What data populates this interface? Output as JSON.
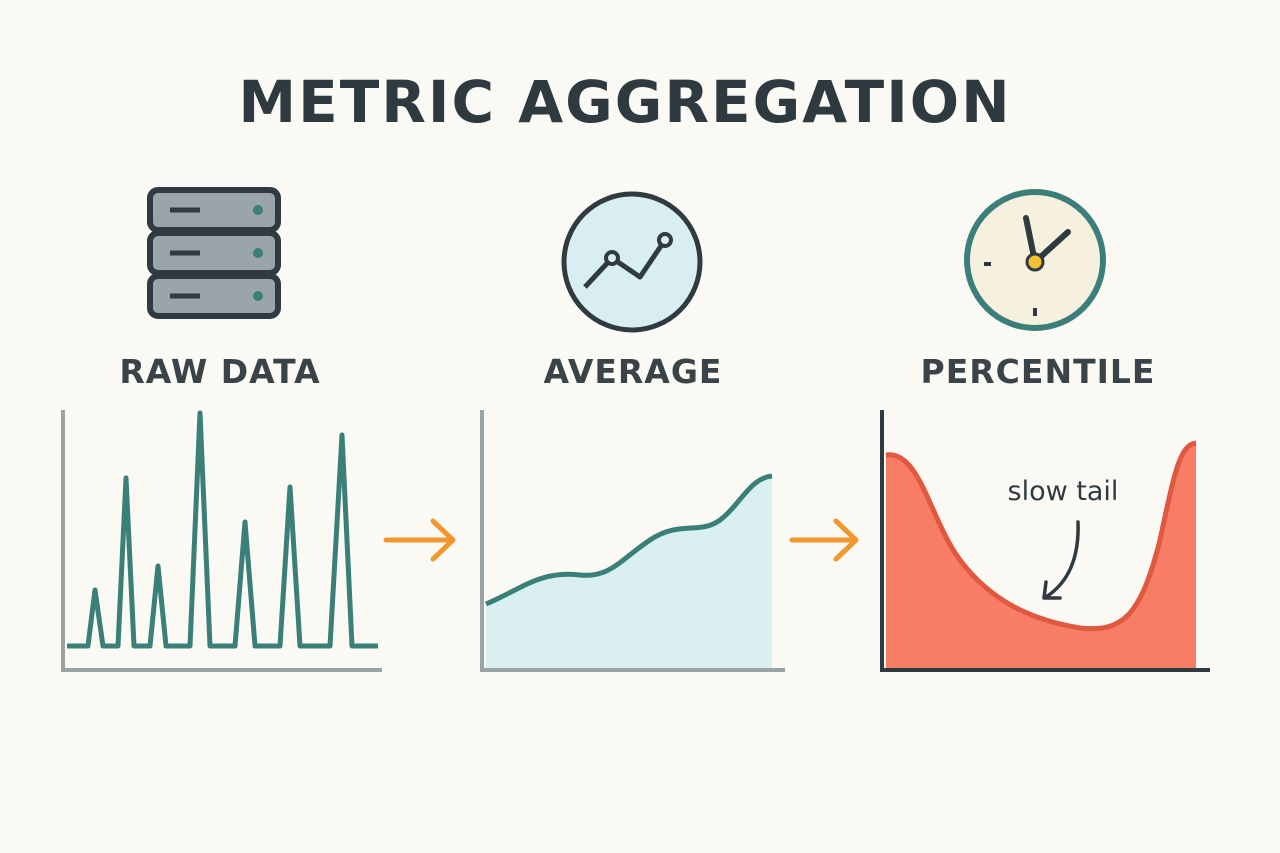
{
  "title": "METRIC AGGREGATION",
  "panels": [
    {
      "label": "RAW DATA"
    },
    {
      "label": "AVERAGE"
    },
    {
      "label": "PERCENTILE",
      "annotation": "slow tail"
    }
  ]
}
